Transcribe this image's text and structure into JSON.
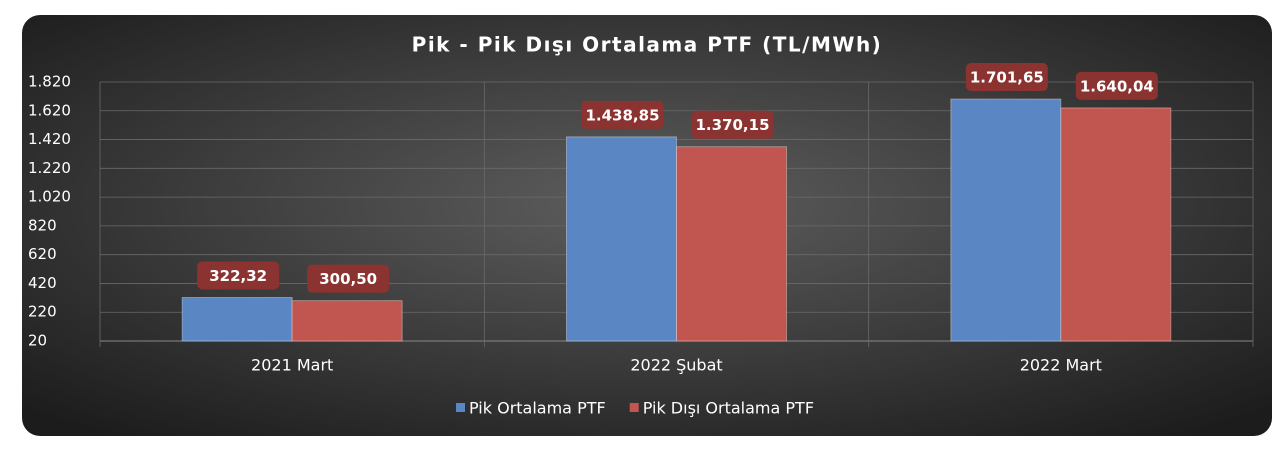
{
  "chart_data": {
    "type": "bar",
    "title": "Pik - Pik Dışı Ortalama PTF (TL/MWh)",
    "categories": [
      "2021 Mart",
      "2022 Şubat",
      "2022 Mart"
    ],
    "series": [
      {
        "name": "Pik Ortalama PTF",
        "color": "#5b86c4",
        "values": [
          322.32,
          1438.85,
          1701.65
        ],
        "value_labels": [
          "322,32",
          "1.438,85",
          "1.701,65"
        ]
      },
      {
        "name": "Pik Dışı Ortalama PTF",
        "color": "#c0564f",
        "values": [
          300.5,
          1370.15,
          1640.04
        ],
        "value_labels": [
          "300,50",
          "1.370,15",
          "1.640,04"
        ]
      }
    ],
    "ylim": [
      20,
      1820
    ],
    "yticks": [
      20,
      220,
      420,
      620,
      820,
      {
        "value": 1020,
        "label": "1.020"
      },
      {
        "value": 1220,
        "label": "1.220"
      },
      {
        "value": 1420,
        "label": "1.420"
      },
      {
        "value": 1620,
        "label": "1.620"
      },
      {
        "value": 1820,
        "label": "1.820"
      }
    ],
    "grid": true,
    "legend": "bottom"
  }
}
